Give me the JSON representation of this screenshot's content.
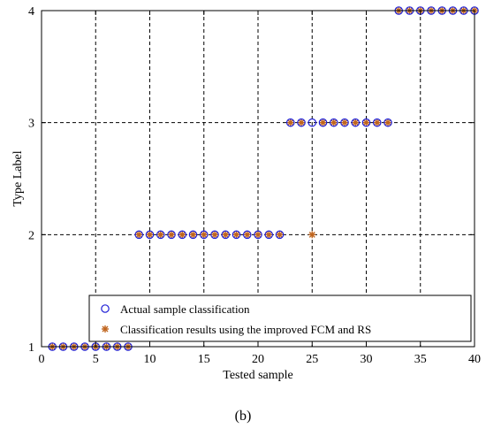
{
  "chart_data": {
    "type": "scatter",
    "xlabel": "Tested sample",
    "ylabel": "Type Label",
    "xlim": [
      0,
      40
    ],
    "ylim": [
      1,
      4
    ],
    "xticks": [
      0,
      5,
      10,
      15,
      20,
      25,
      30,
      35,
      40
    ],
    "yticks": [
      1,
      2,
      3,
      4
    ],
    "grid": true,
    "legend_position": "bottom-right",
    "series": [
      {
        "name": "Actual sample classification",
        "marker": "circle",
        "color": "#1f1fd6",
        "x": [
          1,
          2,
          3,
          4,
          5,
          6,
          7,
          8,
          9,
          10,
          11,
          12,
          13,
          14,
          15,
          16,
          17,
          18,
          19,
          20,
          21,
          22,
          23,
          24,
          25,
          26,
          27,
          28,
          29,
          30,
          31,
          32,
          33,
          34,
          35,
          36,
          37,
          38,
          39,
          40
        ],
        "y": [
          1,
          1,
          1,
          1,
          1,
          1,
          1,
          1,
          2,
          2,
          2,
          2,
          2,
          2,
          2,
          2,
          2,
          2,
          2,
          2,
          2,
          2,
          3,
          3,
          3,
          3,
          3,
          3,
          3,
          3,
          3,
          3,
          4,
          4,
          4,
          4,
          4,
          4,
          4,
          4
        ]
      },
      {
        "name": "Classification results using the improved FCM and RS",
        "marker": "star",
        "color": "#c0651e",
        "x": [
          1,
          2,
          3,
          4,
          5,
          6,
          7,
          8,
          9,
          10,
          11,
          12,
          13,
          14,
          15,
          16,
          17,
          18,
          19,
          20,
          21,
          22,
          23,
          24,
          25,
          26,
          27,
          28,
          29,
          30,
          31,
          32,
          33,
          34,
          35,
          36,
          37,
          38,
          39,
          40
        ],
        "y": [
          1,
          1,
          1,
          1,
          1,
          1,
          1,
          1,
          2,
          2,
          2,
          2,
          2,
          2,
          2,
          2,
          2,
          2,
          2,
          2,
          2,
          2,
          3,
          3,
          2,
          3,
          3,
          3,
          3,
          3,
          3,
          3,
          4,
          4,
          4,
          4,
          4,
          4,
          4,
          4
        ]
      }
    ]
  },
  "caption": "(b)"
}
